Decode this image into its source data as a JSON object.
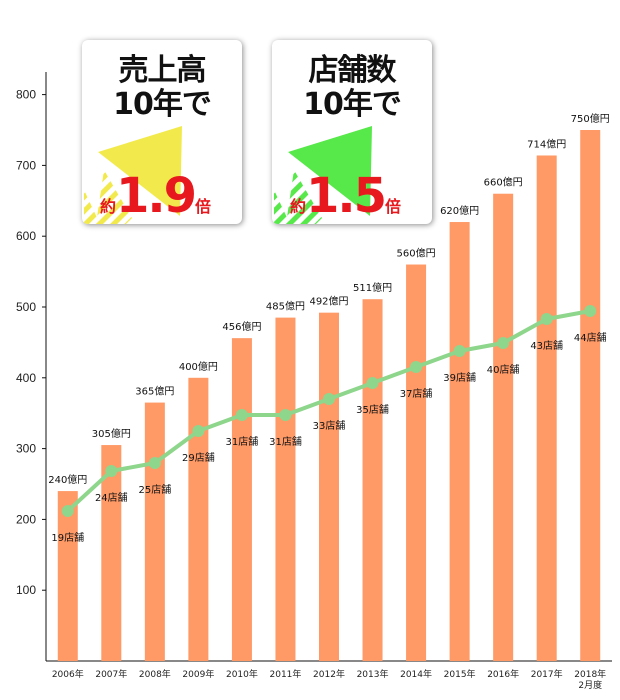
{
  "chart_data": {
    "type": "bar",
    "categories": [
      "2006年",
      "2007年",
      "2008年",
      "2009年",
      "2010年",
      "2011年",
      "2012年",
      "2013年",
      "2014年",
      "2015年",
      "2016年",
      "2017年",
      "2018年 2月度"
    ],
    "category_lines": [
      [
        "2006年"
      ],
      [
        "2007年"
      ],
      [
        "2008年"
      ],
      [
        "2009年"
      ],
      [
        "2010年"
      ],
      [
        "2011年"
      ],
      [
        "2012年"
      ],
      [
        "2013年"
      ],
      [
        "2014年"
      ],
      [
        "2015年"
      ],
      [
        "2016年"
      ],
      [
        "2017年"
      ],
      [
        "2018年",
        "2月度"
      ]
    ],
    "ylim": [
      0,
      850
    ],
    "yticks": [
      100,
      200,
      300,
      400,
      500,
      600,
      700,
      800
    ],
    "series": [
      {
        "type": "bar",
        "color": "#ff9966",
        "values": [
          240,
          305,
          365,
          400,
          456,
          485,
          492,
          511,
          560,
          620,
          660,
          714,
          750
        ],
        "labels": [
          "240億円",
          "305億円",
          "365億円",
          "400億円",
          "456億円",
          "485億円",
          "492億円",
          "511億円",
          "560億円",
          "620億円",
          "660億円",
          "714億円",
          "750億円"
        ]
      },
      {
        "type": "line",
        "color": "#8ed68c",
        "values": [
          19,
          24,
          25,
          29,
          31,
          31,
          33,
          35,
          37,
          39,
          40,
          43,
          44
        ],
        "labels": [
          "19店舗",
          "24店舗",
          "25店舗",
          "29店舗",
          "31店舗",
          "31店舗",
          "33店舗",
          "35店舗",
          "37店舗",
          "39店舗",
          "40店舗",
          "43店舗",
          "44店舗"
        ]
      }
    ],
    "grid": false
  },
  "badges": [
    {
      "title_line1": "売上高",
      "title_line2": "10年で",
      "prefix": "約",
      "multiplier": "1.9",
      "suffix": "倍",
      "arrow_color": "#f2ea4c"
    },
    {
      "title_line1": "店舗数",
      "title_line2": "10年で",
      "prefix": "約",
      "multiplier": "1.5",
      "suffix": "倍",
      "arrow_color": "#57e84a"
    }
  ]
}
